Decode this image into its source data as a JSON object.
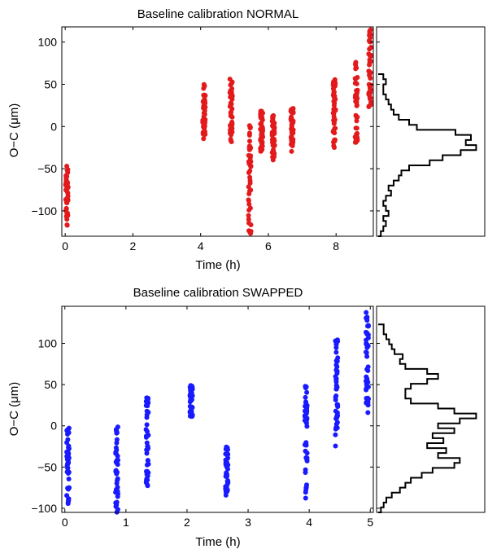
{
  "chart_data": [
    {
      "type": "scatter",
      "title": "Baseline calibration NORMAL",
      "xlabel": "Time (h)",
      "ylabel": "O−C (μm)",
      "xlim": [
        -0.1,
        9.1
      ],
      "ylim": [
        -130,
        118
      ],
      "xticks": [
        0,
        2,
        4,
        6,
        8
      ],
      "yticks": [
        -100,
        -50,
        0,
        50,
        100
      ],
      "xtick_labels": [
        "0",
        "2",
        "4",
        "6",
        "8"
      ],
      "ytick_labels": [
        "−100",
        "−50",
        "0",
        "50",
        "100"
      ],
      "color": "#e31a1c",
      "groups": [
        {
          "x": 0.05,
          "y_min": -118,
          "y_max": -45
        },
        {
          "x": 4.1,
          "y_min": -15,
          "y_max": 50
        },
        {
          "x": 4.9,
          "y_min": -20,
          "y_max": 58
        },
        {
          "x": 5.45,
          "y_min": -130,
          "y_max": 2
        },
        {
          "x": 5.8,
          "y_min": -30,
          "y_max": 20
        },
        {
          "x": 6.15,
          "y_min": -40,
          "y_max": 15
        },
        {
          "x": 6.7,
          "y_min": -30,
          "y_max": 22
        },
        {
          "x": 7.95,
          "y_min": -25,
          "y_max": 58
        },
        {
          "x": 8.6,
          "y_min": -20,
          "y_max": 85
        },
        {
          "x": 9.0,
          "y_min": 22,
          "y_max": 115
        }
      ],
      "histogram": {
        "bin_width": 6,
        "bin_start": -130,
        "counts": [
          1,
          2,
          3,
          2,
          4,
          3,
          2,
          3,
          5,
          4,
          6,
          8,
          9,
          12,
          20,
          25,
          32,
          38,
          34,
          36,
          30,
          15,
          12,
          8,
          6,
          5,
          4,
          3,
          2,
          2,
          3,
          2
        ]
      }
    },
    {
      "type": "scatter",
      "title": "Baseline calibration SWAPPED",
      "xlabel": "Time (h)",
      "ylabel": "O−C (μm)",
      "xlim": [
        -0.05,
        5.05
      ],
      "ylim": [
        -105,
        145
      ],
      "xticks": [
        0,
        1,
        2,
        3,
        4,
        5
      ],
      "yticks": [
        -100,
        -50,
        0,
        50,
        100
      ],
      "xtick_labels": [
        "0",
        "1",
        "2",
        "3",
        "4",
        "5"
      ],
      "ytick_labels": [
        "−100",
        "−50",
        "0",
        "50",
        "100"
      ],
      "color": "#1a1aff",
      "groups": [
        {
          "x": 0.05,
          "y_min": -95,
          "y_max": 0
        },
        {
          "x": 0.85,
          "y_min": -105,
          "y_max": 2
        },
        {
          "x": 1.35,
          "y_min": -75,
          "y_max": 38
        },
        {
          "x": 2.07,
          "y_min": 10,
          "y_max": 52
        },
        {
          "x": 2.65,
          "y_min": -85,
          "y_max": -25
        },
        {
          "x": 3.95,
          "y_min": -90,
          "y_max": 48
        },
        {
          "x": 4.45,
          "y_min": -25,
          "y_max": 105
        },
        {
          "x": 4.95,
          "y_min": 10,
          "y_max": 145
        }
      ],
      "histogram": {
        "bin_width": 6,
        "bin_start": -105,
        "counts": [
          1,
          2,
          3,
          5,
          8,
          10,
          12,
          16,
          20,
          28,
          30,
          22,
          25,
          18,
          24,
          20,
          28,
          22,
          30,
          36,
          28,
          22,
          12,
          10,
          10,
          12,
          18,
          22,
          18,
          10,
          8,
          9,
          6,
          5,
          4,
          3,
          2,
          2
        ]
      }
    }
  ]
}
